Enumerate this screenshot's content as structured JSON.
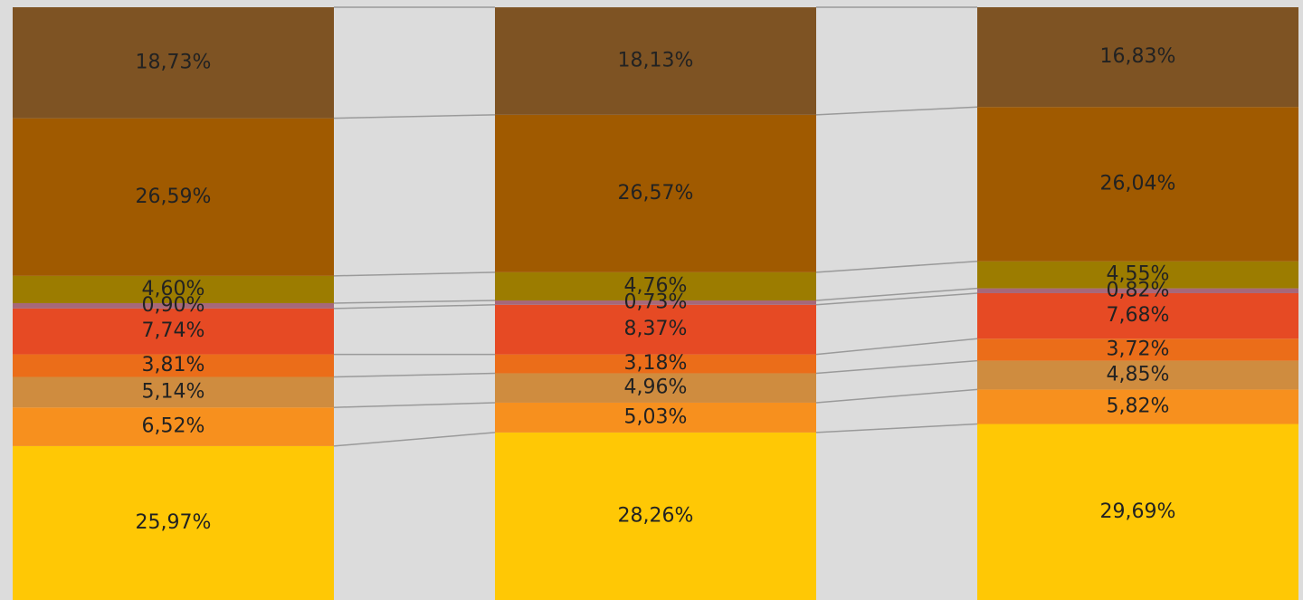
{
  "chart_data": {
    "type": "stacked_bar_100",
    "categories": [
      null,
      null,
      null
    ],
    "ylim": [
      0,
      100
    ],
    "series": [
      {
        "color": "#ffc805",
        "values": [
          25.97,
          28.26,
          29.69
        ],
        "value_labels": [
          "25,97%",
          "28,26%",
          "29,69%"
        ]
      },
      {
        "color": "#f7901e",
        "values": [
          6.52,
          5.03,
          5.82
        ],
        "value_labels": [
          "6,52%",
          "5,03%",
          "5,82%"
        ]
      },
      {
        "color": "#cf8c3f",
        "values": [
          5.14,
          4.96,
          4.85
        ],
        "value_labels": [
          "5,14%",
          "4,96%",
          "4,85%"
        ]
      },
      {
        "color": "#eb6d19",
        "values": [
          3.81,
          3.18,
          3.72
        ],
        "value_labels": [
          "3,81%",
          "3,18%",
          "3,72%"
        ]
      },
      {
        "color": "#e64a24",
        "values": [
          7.74,
          8.37,
          7.68
        ],
        "value_labels": [
          "7,74%",
          "8,37%",
          "7,68%"
        ]
      },
      {
        "color": "#a6687a",
        "values": [
          0.9,
          0.73,
          0.82
        ],
        "value_labels": [
          "0,90%",
          "0,73%",
          "0,82%"
        ]
      },
      {
        "color": "#9c7c00",
        "values": [
          4.6,
          4.76,
          4.55
        ],
        "value_labels": [
          "4,60%",
          "4,76%",
          "4,55%"
        ]
      },
      {
        "color": "#a05a00",
        "values": [
          26.59,
          26.57,
          26.04
        ],
        "value_labels": [
          "26,59%",
          "26,57%",
          "26,04%"
        ]
      },
      {
        "color": "#7e5323",
        "values": [
          18.73,
          18.13,
          16.83
        ],
        "value_labels": [
          "18,73%",
          "18,13%",
          "16,83%"
        ]
      }
    ]
  }
}
